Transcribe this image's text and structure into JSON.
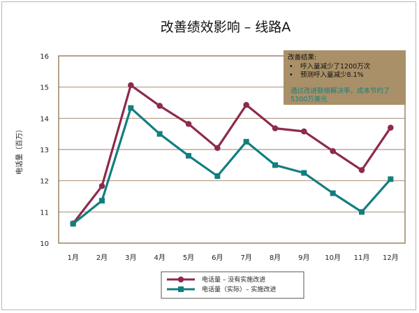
{
  "chart_data": {
    "type": "line",
    "title": "改善绩效影响 – 线路A",
    "xlabel": "",
    "ylabel": "电话量（百万）",
    "categories": [
      "1月",
      "2月",
      "3月",
      "4月",
      "5月",
      "6月",
      "7月",
      "8月",
      "9月",
      "10月",
      "11月",
      "12月"
    ],
    "ylim": [
      10,
      16
    ],
    "yticks": [
      "10",
      "11",
      "12",
      "13",
      "14",
      "15",
      "16"
    ],
    "grid": "horizontal",
    "legend_position": "bottom-center",
    "series": [
      {
        "name": "电话量 – 没有实施改进",
        "color": "#8e2a4d",
        "marker": "circle",
        "values": [
          10.63,
          11.83,
          15.06,
          14.4,
          13.82,
          13.05,
          14.43,
          13.68,
          13.58,
          12.95,
          12.34,
          13.7
        ]
      },
      {
        "name": "电话量（实际）– 实施改进",
        "color": "#137e7e",
        "marker": "square",
        "values": [
          10.62,
          11.36,
          14.33,
          13.5,
          12.8,
          12.15,
          13.25,
          12.5,
          12.25,
          11.6,
          11.0,
          12.05
        ]
      }
    ],
    "annotation": {
      "heading": "改善结果:",
      "bullets": [
        "呼入量减少了1200万次",
        "预测呼入量减少8.1%"
      ],
      "highlight": [
        "通过改进联络解决率，成本节约了",
        "5300万美元"
      ],
      "background": "#a99068",
      "highlight_color": "#1a7e79"
    }
  },
  "colors": {
    "plot_border": "#8a6f50",
    "gridline": "#9a7f5e"
  }
}
